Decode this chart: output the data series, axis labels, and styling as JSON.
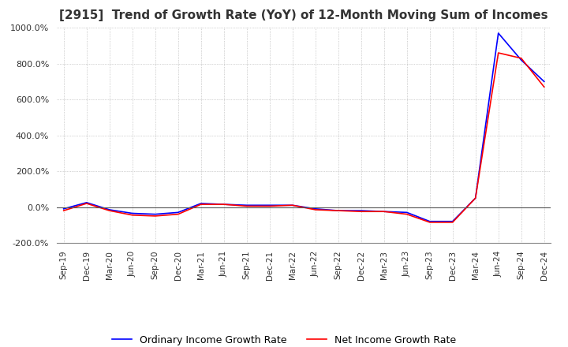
{
  "title": "[2915]  Trend of Growth Rate (YoY) of 12-Month Moving Sum of Incomes",
  "title_fontsize": 11,
  "ylim": [
    -200,
    1000
  ],
  "yticks": [
    -200,
    0,
    200,
    400,
    600,
    800,
    1000
  ],
  "background_color": "#ffffff",
  "grid_color": "#aaaaaa",
  "ordinary_color": "#0000ff",
  "net_color": "#ff0000",
  "legend_ordinary": "Ordinary Income Growth Rate",
  "legend_net": "Net Income Growth Rate",
  "dates": [
    "Sep-19",
    "Dec-19",
    "Mar-20",
    "Jun-20",
    "Sep-20",
    "Dec-20",
    "Mar-21",
    "Jun-21",
    "Sep-21",
    "Dec-21",
    "Mar-22",
    "Jun-22",
    "Sep-22",
    "Dec-22",
    "Mar-23",
    "Jun-23",
    "Sep-23",
    "Dec-23",
    "Mar-24",
    "Jun-24",
    "Sep-24",
    "Dec-24"
  ],
  "ordinary_values": [
    -10,
    25,
    -15,
    -35,
    -40,
    -30,
    20,
    15,
    10,
    10,
    10,
    -10,
    -20,
    -20,
    -25,
    -30,
    -80,
    -80,
    50,
    970,
    820,
    700
  ],
  "net_values": [
    -20,
    20,
    -20,
    -45,
    -50,
    -40,
    15,
    15,
    5,
    5,
    10,
    -15,
    -20,
    -25,
    -25,
    -40,
    -85,
    -85,
    50,
    860,
    830,
    670
  ]
}
